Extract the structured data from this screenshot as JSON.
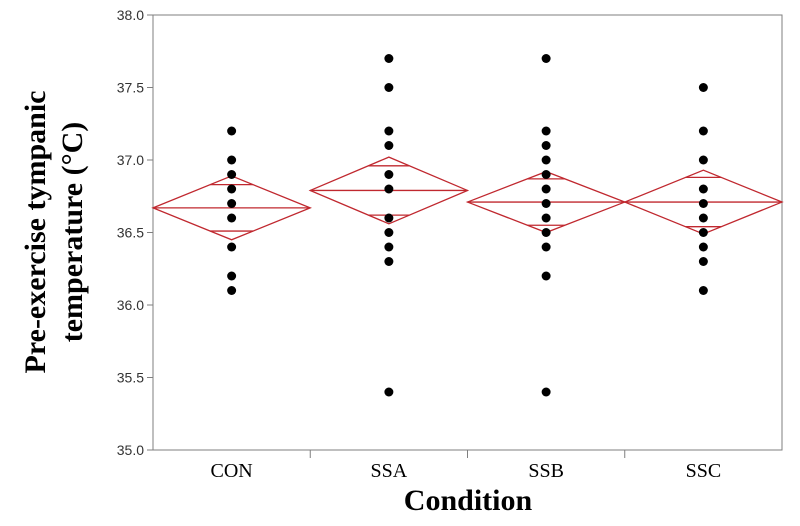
{
  "chart_data": {
    "type": "scatter",
    "subtype": "means-diamonds",
    "title": "",
    "xlabel": "Condition",
    "ylabel_lines": [
      "Pre-exercise tympanic",
      "temperature  (°C)"
    ],
    "ylim": [
      35.0,
      38.0
    ],
    "yticks": [
      "35.0",
      "35.5",
      "36.0",
      "36.5",
      "37.0",
      "37.5",
      "38.0"
    ],
    "categories": [
      "CON",
      "SSA",
      "SSB",
      "SSC"
    ],
    "points": [
      [
        37.2,
        37.0,
        36.9,
        36.8,
        36.7,
        36.6,
        36.4,
        36.2,
        36.1
      ],
      [
        37.7,
        37.5,
        37.2,
        37.1,
        36.9,
        36.8,
        36.6,
        36.5,
        36.4,
        36.3,
        35.4
      ],
      [
        37.7,
        37.2,
        37.1,
        37.0,
        36.9,
        36.8,
        36.7,
        36.6,
        36.5,
        36.4,
        36.2,
        35.4
      ],
      [
        37.5,
        37.2,
        37.0,
        36.8,
        36.7,
        36.6,
        36.5,
        36.4,
        36.3,
        36.1
      ]
    ],
    "diamonds": [
      {
        "mean": 36.67,
        "lower": 36.45,
        "upper": 36.89,
        "overlap_lower": 36.51,
        "overlap_upper": 36.83
      },
      {
        "mean": 36.79,
        "lower": 36.56,
        "upper": 37.02,
        "overlap_lower": 36.62,
        "overlap_upper": 36.96
      },
      {
        "mean": 36.71,
        "lower": 36.5,
        "upper": 36.92,
        "overlap_lower": 36.55,
        "overlap_upper": 36.87
      },
      {
        "mean": 36.71,
        "lower": 36.49,
        "upper": 36.93,
        "overlap_lower": 36.54,
        "overlap_upper": 36.88
      }
    ],
    "grid": false,
    "colors": {
      "diamond": "#c0282f",
      "point": "#000000",
      "axis": "#7f7f7f"
    }
  }
}
